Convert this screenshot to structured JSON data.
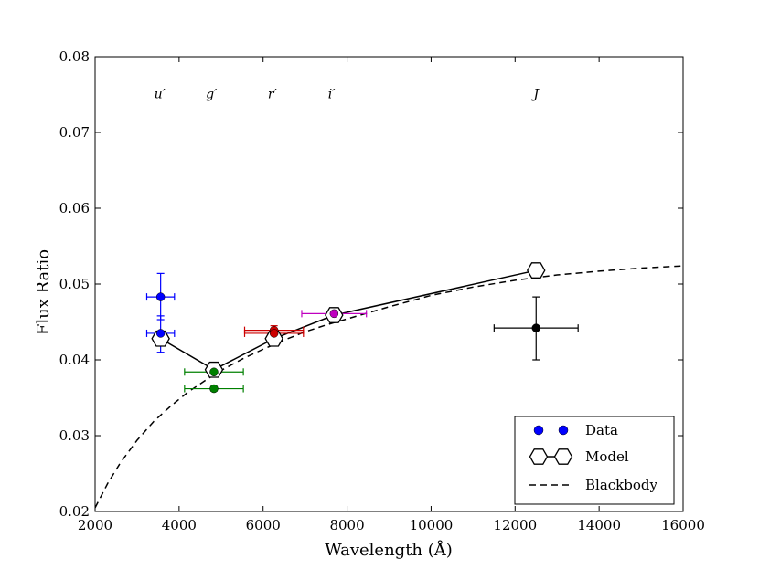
{
  "chart_data": {
    "type": "scatter",
    "title": "",
    "xlabel": "Wavelength (Å)",
    "ylabel": "Flux Ratio",
    "xlim": [
      2000,
      16000
    ],
    "ylim": [
      0.02,
      0.08
    ],
    "xticks": [
      2000,
      4000,
      6000,
      8000,
      10000,
      12000,
      14000,
      16000
    ],
    "yticks": [
      0.02,
      0.03,
      0.04,
      0.05,
      0.06,
      0.07,
      0.08
    ],
    "xtick_labels": [
      "2000",
      "4000",
      "6000",
      "8000",
      "10000",
      "12000",
      "14000",
      "16000"
    ],
    "ytick_labels": [
      "0.02",
      "0.03",
      "0.04",
      "0.05",
      "0.06",
      "0.07",
      "0.08"
    ],
    "band_labels": [
      {
        "label": "u′",
        "x": 3540
      },
      {
        "label": "g′",
        "x": 4770
      },
      {
        "label": "r′",
        "x": 6220
      },
      {
        "label": "i′",
        "x": 7630
      },
      {
        "label": "J",
        "x": 12500
      }
    ],
    "band_label_y": 0.0745,
    "data_points": [
      {
        "band": "u′",
        "x": 3560,
        "y": 0.0483,
        "xerr": 330,
        "yerr_low": 0.003,
        "yerr_high": 0.0031,
        "color": "#0000ff"
      },
      {
        "band": "u′",
        "x": 3560,
        "y": 0.0435,
        "xerr": 330,
        "yerr_low": 0.0025,
        "yerr_high": 0.0023,
        "color": "#0000ff"
      },
      {
        "band": "g′",
        "x": 4830,
        "y": 0.0384,
        "xerr": 700,
        "yerr_low": 0.0003,
        "yerr_high": 0.0003,
        "color": "#008000"
      },
      {
        "band": "g′",
        "x": 4830,
        "y": 0.0362,
        "xerr": 700,
        "yerr_low": 0.0003,
        "yerr_high": 0.0003,
        "color": "#008000"
      },
      {
        "band": "r′",
        "x": 6260,
        "y": 0.0439,
        "xerr": 700,
        "yerr_low": 0.0004,
        "yerr_high": 0.0006,
        "color": "#cc0000"
      },
      {
        "band": "r′",
        "x": 6260,
        "y": 0.0435,
        "xerr": 700,
        "yerr_low": 0.0003,
        "yerr_high": 0.0003,
        "color": "#cc0000"
      },
      {
        "band": "i′",
        "x": 7690,
        "y": 0.0461,
        "xerr": 770,
        "yerr_low": 0.0002,
        "yerr_high": 0.0002,
        "color": "#bf00bf"
      },
      {
        "band": "J",
        "x": 12500,
        "y": 0.0442,
        "xerr": 1000,
        "yerr_low": 0.0042,
        "yerr_high": 0.0041,
        "color": "#000000"
      }
    ],
    "model": {
      "x": [
        3560,
        4830,
        6260,
        7690,
        12500
      ],
      "y": [
        0.0428,
        0.0387,
        0.0428,
        0.0459,
        0.0518
      ]
    },
    "blackbody": {
      "x": [
        2000,
        2300,
        2600,
        3000,
        3400,
        3800,
        4200,
        4600,
        5000,
        5500,
        6000,
        6500,
        7000,
        7500,
        8000,
        9000,
        10000,
        11000,
        12000,
        13000,
        14000,
        15000,
        16000
      ],
      "y": [
        0.0205,
        0.0237,
        0.0264,
        0.0294,
        0.0319,
        0.0339,
        0.0357,
        0.0372,
        0.0386,
        0.0401,
        0.0414,
        0.0426,
        0.0437,
        0.0446,
        0.0454,
        0.047,
        0.0485,
        0.0496,
        0.0505,
        0.0512,
        0.0517,
        0.0521,
        0.0524
      ]
    },
    "legend": {
      "position": "bottom-right",
      "entries": [
        {
          "label": "Data",
          "style": "marker",
          "color": "#0000ff"
        },
        {
          "label": "Model",
          "style": "hexagon-line",
          "color": "#000000"
        },
        {
          "label": "Blackbody",
          "style": "dashed",
          "color": "#000000"
        }
      ]
    }
  }
}
